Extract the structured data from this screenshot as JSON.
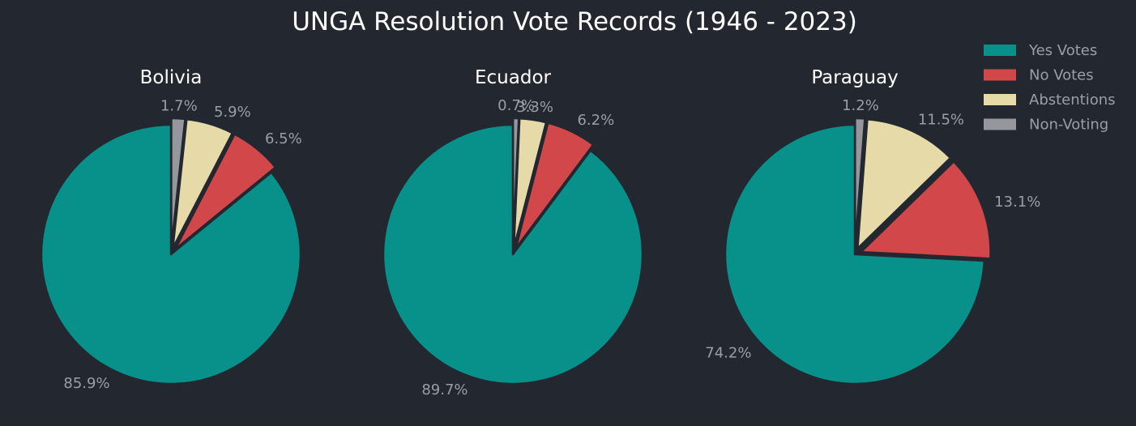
{
  "chart_data": {
    "type": "pie",
    "title": "UNGA Resolution Vote Records (1946 - 2023)",
    "legend_position": "top-right",
    "categories": [
      "Yes Votes",
      "No Votes",
      "Abstentions",
      "Non-Voting"
    ],
    "colors": [
      "#08918a",
      "#d2474a",
      "#e6dba8",
      "#96979c"
    ],
    "charts": [
      {
        "name": "Bolivia",
        "values": [
          85.9,
          6.5,
          5.9,
          1.7
        ],
        "labels": [
          "85.9%",
          "6.5%",
          "5.9%",
          "1.7%"
        ]
      },
      {
        "name": "Ecuador",
        "values": [
          89.7,
          6.2,
          3.3,
          0.7
        ],
        "labels": [
          "89.7%",
          "6.2%",
          "3.3%",
          "0.7%"
        ]
      },
      {
        "name": "Paraguay",
        "values": [
          74.2,
          13.1,
          11.5,
          1.2
        ],
        "labels": [
          "74.2%",
          "13.1%",
          "11.5%",
          "1.2%"
        ]
      }
    ]
  }
}
